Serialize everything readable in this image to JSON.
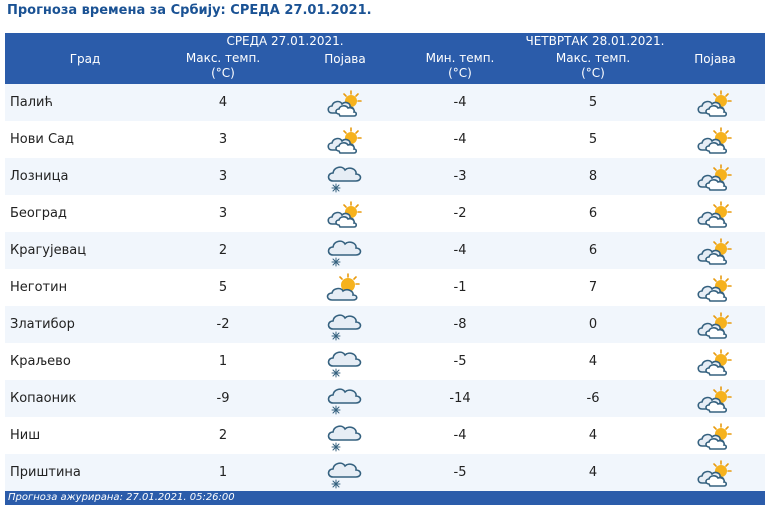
{
  "title": "Прогноза времена за Србију: СРЕДА  27.01.2021.",
  "header": {
    "col_city": "Град",
    "day1": "СРЕДА  27.01.2021.",
    "day2": "ЧЕТВРТАК  28.01.2021.",
    "max_temp_line1": "Макс. темп.",
    "min_temp_line1": "Мин. темп.",
    "unit": "(°C)",
    "phenomenon": "Појава"
  },
  "rows": [
    {
      "city": "Палић",
      "wed_max": "4",
      "wed_icon": "partly-cloudy-icon",
      "thu_min": "-4",
      "thu_max": "5",
      "thu_icon": "partly-cloudy-icon"
    },
    {
      "city": "Нови Сад",
      "wed_max": "3",
      "wed_icon": "partly-cloudy-icon",
      "thu_min": "-4",
      "thu_max": "5",
      "thu_icon": "partly-cloudy-icon"
    },
    {
      "city": "Лозница",
      "wed_max": "3",
      "wed_icon": "cloud-snow-icon",
      "thu_min": "-3",
      "thu_max": "8",
      "thu_icon": "partly-cloudy-icon"
    },
    {
      "city": "Београд",
      "wed_max": "3",
      "wed_icon": "partly-cloudy-icon",
      "thu_min": "-2",
      "thu_max": "6",
      "thu_icon": "partly-cloudy-icon"
    },
    {
      "city": "Крагујевац",
      "wed_max": "2",
      "wed_icon": "cloud-snow-icon",
      "thu_min": "-4",
      "thu_max": "6",
      "thu_icon": "partly-cloudy-icon"
    },
    {
      "city": "Неготин",
      "wed_max": "5",
      "wed_icon": "sun-cloud-icon",
      "thu_min": "-1",
      "thu_max": "7",
      "thu_icon": "partly-cloudy-icon"
    },
    {
      "city": "Златибор",
      "wed_max": "-2",
      "wed_icon": "cloud-snow-icon",
      "thu_min": "-8",
      "thu_max": "0",
      "thu_icon": "partly-cloudy-icon"
    },
    {
      "city": "Краљево",
      "wed_max": "1",
      "wed_icon": "cloud-snow-icon",
      "thu_min": "-5",
      "thu_max": "4",
      "thu_icon": "partly-cloudy-icon"
    },
    {
      "city": "Копаоник",
      "wed_max": "-9",
      "wed_icon": "cloud-snow-icon",
      "thu_min": "-14",
      "thu_max": "-6",
      "thu_icon": "partly-cloudy-icon"
    },
    {
      "city": "Ниш",
      "wed_max": "2",
      "wed_icon": "cloud-snow-icon",
      "thu_min": "-4",
      "thu_max": "4",
      "thu_icon": "partly-cloudy-icon"
    },
    {
      "city": "Приштина",
      "wed_max": "1",
      "wed_icon": "cloud-snow-icon",
      "thu_min": "-5",
      "thu_max": "4",
      "thu_icon": "partly-cloudy-icon"
    }
  ],
  "footer": "Прогноза ажурирана:   27.01.2021. 05:26:00",
  "colors": {
    "header_bg": "#2b5caa",
    "title": "#1a5294",
    "row_alt": "#f1f6fc"
  }
}
